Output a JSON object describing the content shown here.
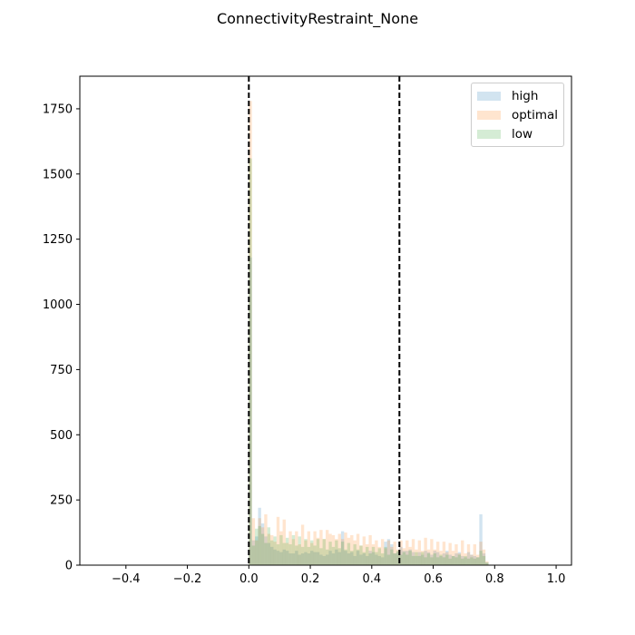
{
  "figure": {
    "suptitle": "ConnectivityRestraint_None"
  },
  "chart_data": {
    "type": "bar",
    "title": "",
    "xlabel": "",
    "ylabel": "",
    "xlim": [
      -0.55,
      1.05
    ],
    "ylim": [
      0,
      1875
    ],
    "x_ticks": [
      -0.4,
      -0.2,
      0.0,
      0.2,
      0.4,
      0.6,
      0.8,
      1.0
    ],
    "x_tick_labels": [
      "−0.4",
      "−0.2",
      "0.0",
      "0.2",
      "0.4",
      "0.6",
      "0.8",
      "1.0"
    ],
    "y_ticks": [
      0,
      250,
      500,
      750,
      1000,
      1250,
      1500,
      1750
    ],
    "y_tick_labels": [
      "0",
      "250",
      "500",
      "750",
      "1000",
      "1250",
      "1500",
      "1750"
    ],
    "grid": false,
    "legend_position": "top-right",
    "alpha": 0.2,
    "vlines": [
      {
        "x": 0.0,
        "style": "dashed",
        "color": "#000000"
      },
      {
        "x": 0.49,
        "style": "dashed",
        "color": "#000000"
      }
    ],
    "bin_start": 0.0,
    "bin_width": 0.01,
    "series": [
      {
        "name": "high",
        "color": "#1f77b4",
        "values": [
          1180,
          95,
          110,
          220,
          160,
          110,
          85,
          70,
          60,
          55,
          50,
          60,
          55,
          45,
          45,
          55,
          40,
          45,
          50,
          45,
          55,
          50,
          50,
          40,
          35,
          40,
          55,
          45,
          60,
          50,
          130,
          55,
          45,
          50,
          35,
          55,
          40,
          45,
          35,
          55,
          50,
          40,
          35,
          30,
          90,
          100,
          80,
          45,
          50,
          70,
          55,
          55,
          60,
          50,
          35,
          50,
          40,
          55,
          50,
          40,
          55,
          50,
          35,
          45,
          55,
          40,
          35,
          45,
          50,
          35,
          30,
          50,
          40,
          35,
          30,
          195,
          45,
          10
        ]
      },
      {
        "name": "optimal",
        "color": "#ff7f0e",
        "values": [
          1780,
          180,
          95,
          180,
          145,
          195,
          120,
          115,
          90,
          185,
          130,
          175,
          85,
          130,
          100,
          130,
          80,
          155,
          95,
          130,
          85,
          130,
          105,
          135,
          100,
          135,
          120,
          115,
          100,
          120,
          100,
          125,
          105,
          115,
          95,
          120,
          75,
          110,
          80,
          115,
          80,
          95,
          70,
          100,
          65,
          95,
          70,
          90,
          60,
          95,
          65,
          95,
          70,
          100,
          60,
          95,
          55,
          105,
          60,
          100,
          60,
          90,
          55,
          90,
          50,
          85,
          55,
          80,
          45,
          95,
          45,
          80,
          40,
          80,
          40,
          90,
          60,
          15
        ]
      },
      {
        "name": "low",
        "color": "#2ca02c",
        "values": [
          1560,
          75,
          140,
          150,
          120,
          85,
          145,
          95,
          110,
          80,
          115,
          85,
          105,
          80,
          115,
          75,
          110,
          70,
          100,
          70,
          95,
          75,
          100,
          65,
          100,
          60,
          90,
          70,
          95,
          65,
          90,
          60,
          85,
          55,
          80,
          60,
          75,
          50,
          70,
          45,
          70,
          50,
          65,
          45,
          70,
          40,
          60,
          45,
          55,
          40,
          50,
          40,
          55,
          35,
          50,
          35,
          50,
          30,
          45,
          30,
          45,
          30,
          40,
          30,
          40,
          25,
          35,
          30,
          40,
          25,
          35,
          25,
          30,
          25,
          30,
          55,
          35,
          10
        ]
      }
    ]
  }
}
